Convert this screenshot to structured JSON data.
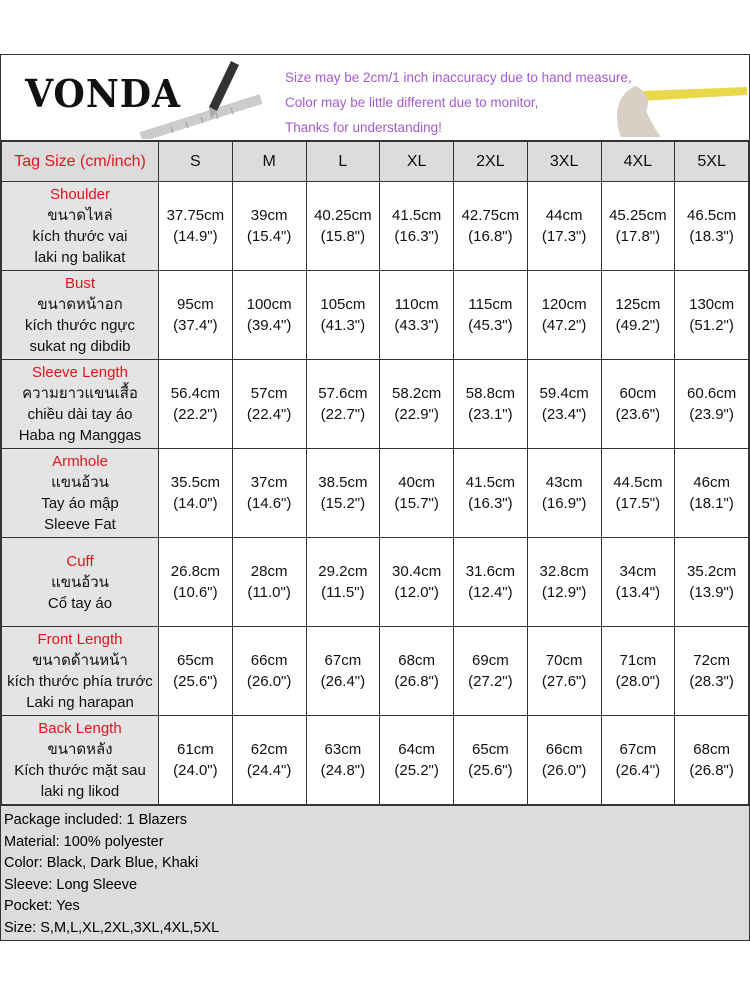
{
  "brand": "VONDA",
  "notes": [
    "Size may be 2cm/1 inch inaccuracy due to hand measure,",
    "Color may be little different due to monitor,",
    "Thanks for understanding!"
  ],
  "colors": {
    "note": "#a45bd0",
    "label_red": "#e0161c",
    "cell_gray": "#dcdcdc"
  },
  "table": {
    "header_label": "Tag Size (cm/inch)",
    "sizes": [
      "S",
      "M",
      "L",
      "XL",
      "2XL",
      "3XL",
      "4XL",
      "5XL"
    ],
    "rows": [
      {
        "label": "Shoulder",
        "translations": [
          "ขนาดไหล่",
          "kích thước vai",
          "laki ng balikat"
        ],
        "cm": [
          "37.75cm",
          "39cm",
          "40.25cm",
          "41.5cm",
          "42.75cm",
          "44cm",
          "45.25cm",
          "46.5cm"
        ],
        "inch": [
          "(14.9\")",
          "(15.4\")",
          "(15.8\")",
          "(16.3\")",
          "(16.8\")",
          "(17.3\")",
          "(17.8\")",
          "(18.3\")"
        ]
      },
      {
        "label": "Bust",
        "translations": [
          "ขนาดหน้าอก",
          "kích thước ngực",
          "sukat ng dibdib"
        ],
        "cm": [
          "95cm",
          "100cm",
          "105cm",
          "110cm",
          "115cm",
          "120cm",
          "125cm",
          "130cm"
        ],
        "inch": [
          "(37.4\")",
          "(39.4\")",
          "(41.3\")",
          "(43.3\")",
          "(45.3\")",
          "(47.2\")",
          "(49.2\")",
          "(51.2\")"
        ]
      },
      {
        "label": "Sleeve Length",
        "translations": [
          "ความยาวแขนเสื้อ",
          "chiều dài tay áo",
          "Haba ng Manggas"
        ],
        "cm": [
          "56.4cm",
          "57cm",
          "57.6cm",
          "58.2cm",
          "58.8cm",
          "59.4cm",
          "60cm",
          "60.6cm"
        ],
        "inch": [
          "(22.2\")",
          "(22.4\")",
          "(22.7\")",
          "(22.9\")",
          "(23.1\")",
          "(23.4\")",
          "(23.6\")",
          "(23.9\")"
        ]
      },
      {
        "label": "Armhole",
        "translations": [
          "แขนอ้วน",
          "Tay áo mập",
          "Sleeve Fat"
        ],
        "cm": [
          "35.5cm",
          "37cm",
          "38.5cm",
          "40cm",
          "41.5cm",
          "43cm",
          "44.5cm",
          "46cm"
        ],
        "inch": [
          "(14.0\")",
          "(14.6\")",
          "(15.2\")",
          "(15.7\")",
          "(16.3\")",
          "(16.9\")",
          "(17.5\")",
          "(18.1\")"
        ]
      },
      {
        "label": "Cuff",
        "translations": [
          "แขนอ้วน",
          "Cổ tay áo"
        ],
        "cm": [
          "26.8cm",
          "28cm",
          "29.2cm",
          "30.4cm",
          "31.6cm",
          "32.8cm",
          "34cm",
          "35.2cm"
        ],
        "inch": [
          "(10.6\")",
          "(11.0\")",
          "(11.5\")",
          "(12.0\")",
          "(12.4\")",
          "(12.9\")",
          "(13.4\")",
          "(13.9\")"
        ]
      },
      {
        "label": "Front Length",
        "translations": [
          "ขนาดด้านหน้า",
          "kích thước phía trước",
          "Laki ng harapan"
        ],
        "cm": [
          "65cm",
          "66cm",
          "67cm",
          "68cm",
          "69cm",
          "70cm",
          "71cm",
          "72cm"
        ],
        "inch": [
          "(25.6\")",
          "(26.0\")",
          "(26.4\")",
          "(26.8\")",
          "(27.2\")",
          "(27.6\")",
          "(28.0\")",
          "(28.3\")"
        ]
      },
      {
        "label": "Back Length",
        "translations": [
          "ขนาดหลัง",
          "Kích thước mặt sau",
          "laki ng likod"
        ],
        "cm": [
          "61cm",
          "62cm",
          "63cm",
          "64cm",
          "65cm",
          "66cm",
          "67cm",
          "68cm"
        ],
        "inch": [
          "(24.0\")",
          "(24.4\")",
          "(24.8\")",
          "(25.2\")",
          "(25.6\")",
          "(26.0\")",
          "(26.4\")",
          "(26.8\")"
        ]
      }
    ]
  },
  "footer": [
    "Package included: 1 Blazers",
    "Material: 100% polyester",
    "Color: Black, Dark Blue, Khaki",
    "Sleeve: Long Sleeve",
    "Pocket: Yes",
    "Size: S,M,L,XL,2XL,3XL,4XL,5XL"
  ]
}
